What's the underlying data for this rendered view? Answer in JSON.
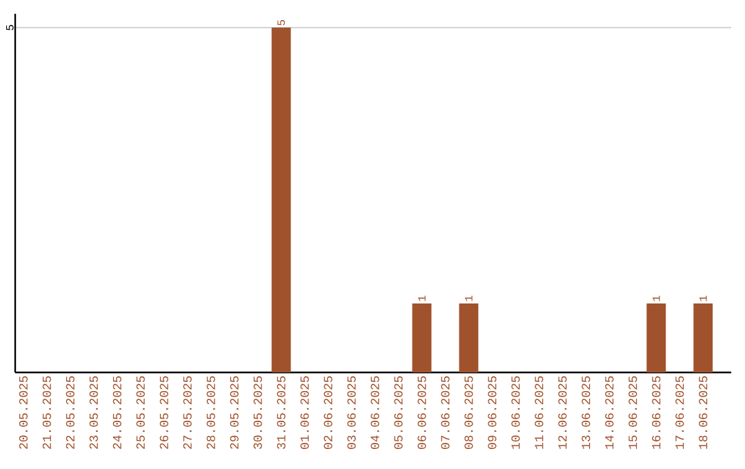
{
  "chart_data": {
    "type": "bar",
    "categories": [
      "20.05.2025",
      "21.05.2025",
      "22.05.2025",
      "23.05.2025",
      "24.05.2025",
      "25.05.2025",
      "26.05.2025",
      "27.05.2025",
      "28.05.2025",
      "29.05.2025",
      "30.05.2025",
      "31.05.2025",
      "01.06.2025",
      "02.06.2025",
      "03.06.2025",
      "04.06.2025",
      "05.06.2025",
      "06.06.2025",
      "07.06.2025",
      "08.06.2025",
      "09.06.2025",
      "10.06.2025",
      "11.06.2025",
      "12.06.2025",
      "13.06.2025",
      "14.06.2025",
      "15.06.2025",
      "16.06.2025",
      "17.06.2025",
      "18.06.2025"
    ],
    "values": [
      0,
      0,
      0,
      0,
      0,
      0,
      0,
      0,
      0,
      0,
      0,
      5,
      0,
      0,
      0,
      0,
      0,
      1,
      0,
      1,
      0,
      0,
      0,
      0,
      0,
      0,
      0,
      1,
      0,
      1
    ],
    "value_labels": [
      null,
      null,
      null,
      null,
      null,
      null,
      null,
      null,
      null,
      null,
      null,
      "5",
      null,
      null,
      null,
      null,
      null,
      "1",
      null,
      "1",
      null,
      null,
      null,
      null,
      null,
      null,
      null,
      "1",
      null,
      "1"
    ],
    "color": "#a0522d",
    "ylim": [
      0,
      5.2
    ],
    "yticks": [
      5
    ],
    "grid": "y"
  }
}
